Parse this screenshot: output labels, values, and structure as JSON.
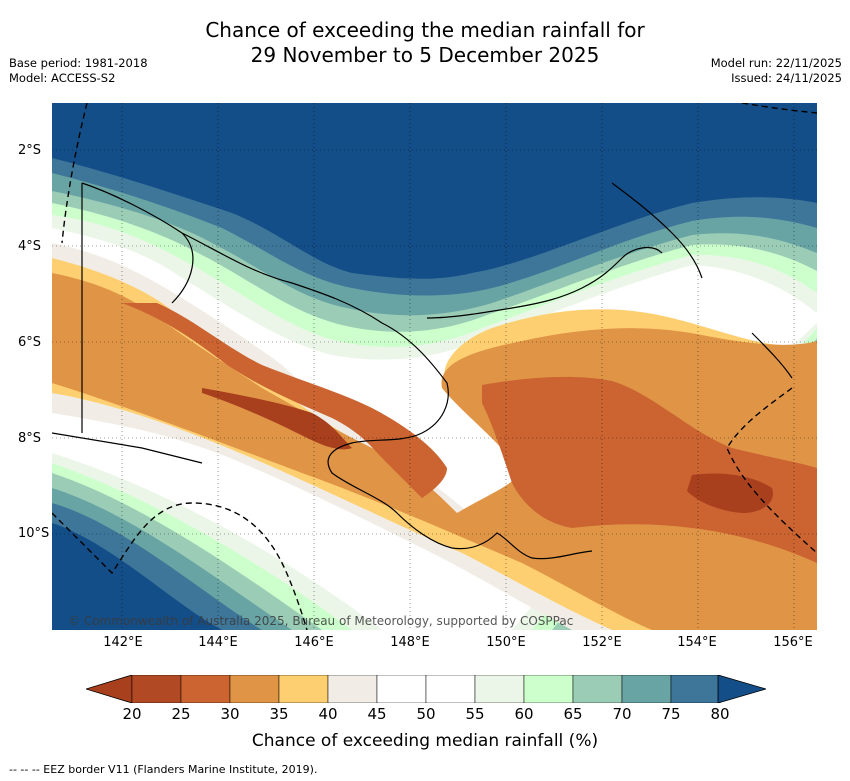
{
  "title_line1": "Chance of exceeding the median rainfall for",
  "title_line2": "29 November to 5 December 2025",
  "base_period": "Base period: 1981-2018",
  "model": "Model: ACCESS-S2",
  "model_run": "Model run: 22/11/2025",
  "issued": "Issued: 24/11/2025",
  "lat_labels": [
    "2°S",
    "4°S",
    "6°S",
    "8°S",
    "10°S"
  ],
  "lon_labels": [
    "142°E",
    "144°E",
    "146°E",
    "148°E",
    "150°E",
    "152°E",
    "154°E",
    "156°E"
  ],
  "copyright": "© Commonwealth of Australia 2025, Bureau of Meteorology, supported by COSPPac",
  "colorbar": {
    "ticks": [
      "20",
      "25",
      "30",
      "35",
      "40",
      "45",
      "50",
      "55",
      "60",
      "65",
      "70",
      "75",
      "80"
    ],
    "colors": [
      "#a8401e",
      "#b14a24",
      "#cb6431",
      "#e09446",
      "#fdcf71",
      "#f1ede6",
      "#ffffff",
      "#ffffff",
      "#ebf6e8",
      "#ccffcc",
      "#9bcdb6",
      "#69a4a5",
      "#3e7699",
      "#144e88"
    ],
    "title": "Chance of exceeding median rainfall (%)"
  },
  "footnote": "-- --  -- EEZ border V11 (Flanders Marine Institute, 2019)."
}
